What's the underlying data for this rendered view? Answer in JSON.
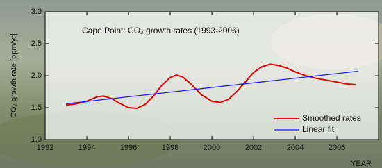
{
  "chart_data": {
    "type": "line",
    "title": "Cape Point: CO₂ growth rates (1993-2006)",
    "x_label": "YEAR",
    "y_label": "CO₂ growth rate [ppm/yr]",
    "xlim": [
      1992,
      2008
    ],
    "xticks": [
      1992,
      1994,
      1996,
      1998,
      2000,
      2002,
      2004,
      2006
    ],
    "ylim": [
      1.0,
      3.0
    ],
    "yticks": [
      {
        "value": 1.0,
        "label": "1.0"
      },
      {
        "value": 1.5,
        "label": "1.5"
      },
      {
        "value": 2.0,
        "label": "2.0"
      },
      2.5,
      {
        "value": 3.0,
        "label": "3.0"
      }
    ],
    "legend": "lower-right",
    "series": [
      {
        "name": "Smoothed rates",
        "color": "#e00000",
        "x": [
          1993.0,
          1993.5,
          1994.0,
          1994.5,
          1994.8,
          1995.2,
          1995.5,
          1996.0,
          1996.4,
          1996.8,
          1997.2,
          1997.6,
          1998.0,
          1998.3,
          1998.6,
          1999.0,
          1999.5,
          2000.0,
          2000.4,
          2000.8,
          2001.2,
          2001.6,
          2002.0,
          2002.4,
          2002.8,
          2003.2,
          2003.6,
          2004.0,
          2004.5,
          2005.0,
          2005.5,
          2006.0,
          2006.5,
          2006.9
        ],
        "values": [
          1.54,
          1.56,
          1.6,
          1.67,
          1.68,
          1.64,
          1.58,
          1.5,
          1.49,
          1.55,
          1.68,
          1.85,
          1.97,
          2.01,
          1.98,
          1.87,
          1.7,
          1.6,
          1.58,
          1.63,
          1.75,
          1.9,
          2.05,
          2.14,
          2.18,
          2.16,
          2.12,
          2.06,
          2.0,
          1.96,
          1.93,
          1.9,
          1.87,
          1.86
        ]
      },
      {
        "name": "Linear fit",
        "color": "#1a1aff",
        "x": [
          1993.0,
          2007.0
        ],
        "values": [
          1.56,
          2.07
        ]
      }
    ]
  }
}
